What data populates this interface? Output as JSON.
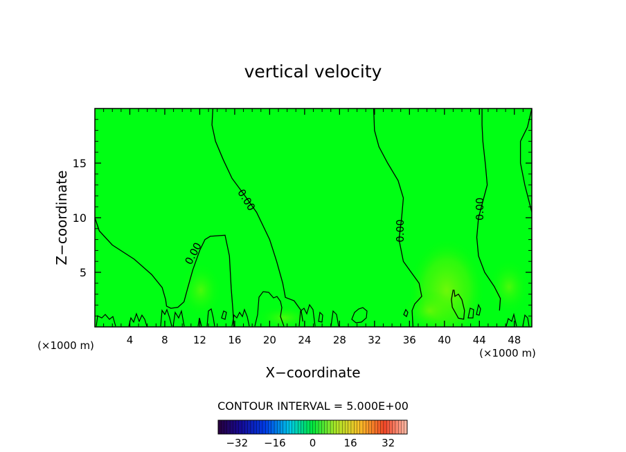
{
  "chart_data": {
    "type": "heatmap",
    "title": "vertical velocity",
    "xlabel": "X−coordinate",
    "ylabel": "Z−coordinate",
    "x_unit_left": "(×1000 m)",
    "x_unit_right": "(×1000 m)",
    "xlim": [
      0,
      50
    ],
    "ylim": [
      0,
      20
    ],
    "xticks": [
      4,
      8,
      12,
      16,
      20,
      24,
      28,
      32,
      36,
      40,
      44,
      48
    ],
    "yticks": [
      5,
      10,
      15
    ],
    "contour_interval_text": "CONTOUR INTERVAL = 5.000E+00",
    "contour_label": "0.00",
    "contour_labels": [
      {
        "text": "0.00",
        "x": 11.3,
        "y": 6.7,
        "angle": -62
      },
      {
        "text": "0.00",
        "x": 17.3,
        "y": 11.6,
        "angle": 58
      },
      {
        "text": "0.00",
        "x": 35.0,
        "y": 8.8,
        "angle": -90
      },
      {
        "text": "0.00",
        "x": 44.1,
        "y": 10.8,
        "angle": -90
      }
    ],
    "contours": [
      [
        [
          0,
          10
        ],
        [
          0.5,
          8.8
        ],
        [
          2,
          7.5
        ],
        [
          4.5,
          6.2
        ],
        [
          6.5,
          4.8
        ],
        [
          7.7,
          3.6
        ],
        [
          8.1,
          2.5
        ],
        [
          8.2,
          1.9
        ],
        [
          8.7,
          1.7
        ],
        [
          9.5,
          1.8
        ],
        [
          10.2,
          2.3
        ],
        [
          10.6,
          3.5
        ],
        [
          11.2,
          5.2
        ],
        [
          12.0,
          7.0
        ],
        [
          12.6,
          8.0
        ],
        [
          13.2,
          8.3
        ],
        [
          14.9,
          8.4
        ],
        [
          15.4,
          6.5
        ],
        [
          15.5,
          5.0
        ],
        [
          15.6,
          3.5
        ],
        [
          15.8,
          1.5
        ],
        [
          15.9,
          0
        ]
      ],
      [
        [
          13.5,
          20
        ],
        [
          13.4,
          18.5
        ],
        [
          13.8,
          17.0
        ],
        [
          14.7,
          15.3
        ],
        [
          15.7,
          13.6
        ],
        [
          17.0,
          12.2
        ],
        [
          18.5,
          10.5
        ],
        [
          20.0,
          8.0
        ],
        [
          20.8,
          6.0
        ],
        [
          21.5,
          4.0
        ],
        [
          21.8,
          2.7
        ],
        [
          22.8,
          2.4
        ],
        [
          23.6,
          1.5
        ],
        [
          23.8,
          0.5
        ]
      ],
      [
        [
          31.9,
          20
        ],
        [
          32.0,
          18.0
        ],
        [
          32.5,
          16.5
        ],
        [
          33.5,
          15.0
        ],
        [
          34.7,
          13.4
        ],
        [
          35.3,
          11.8
        ],
        [
          35.1,
          10.0
        ],
        [
          34.8,
          8.0
        ],
        [
          35.3,
          6.0
        ],
        [
          36.2,
          5.0
        ],
        [
          37.1,
          4.0
        ],
        [
          37.4,
          2.8
        ],
        [
          36.6,
          2.1
        ],
        [
          36.3,
          1.5
        ],
        [
          36.4,
          0
        ]
      ],
      [
        [
          44.3,
          20
        ],
        [
          44.3,
          18.5
        ],
        [
          44.4,
          17.0
        ],
        [
          44.7,
          14.8
        ],
        [
          44.9,
          13.0
        ],
        [
          44.4,
          11.5
        ],
        [
          43.9,
          10.0
        ],
        [
          43.7,
          8.2
        ],
        [
          43.9,
          6.5
        ],
        [
          44.6,
          5.0
        ],
        [
          45.7,
          3.7
        ],
        [
          46.4,
          2.6
        ],
        [
          46.3,
          1.5
        ]
      ],
      [
        [
          50,
          20
        ],
        [
          49.5,
          18.3
        ],
        [
          48.7,
          17.0
        ],
        [
          48.7,
          15.0
        ],
        [
          49.2,
          13.0
        ],
        [
          50,
          10.5
        ]
      ],
      [
        [
          41.0,
          3.4
        ],
        [
          40.8,
          2.5
        ],
        [
          40.9,
          1.8
        ],
        [
          41.6,
          0.8
        ],
        [
          42.2,
          0.7
        ],
        [
          42.3,
          1.5
        ],
        [
          42.0,
          2.5
        ],
        [
          41.6,
          3.0
        ],
        [
          41.2,
          2.8
        ],
        [
          41.1,
          3.4
        ]
      ]
    ],
    "colorbar": {
      "ticks": [
        -32,
        -16,
        0,
        16,
        32
      ],
      "range": [
        -40,
        40
      ]
    }
  }
}
